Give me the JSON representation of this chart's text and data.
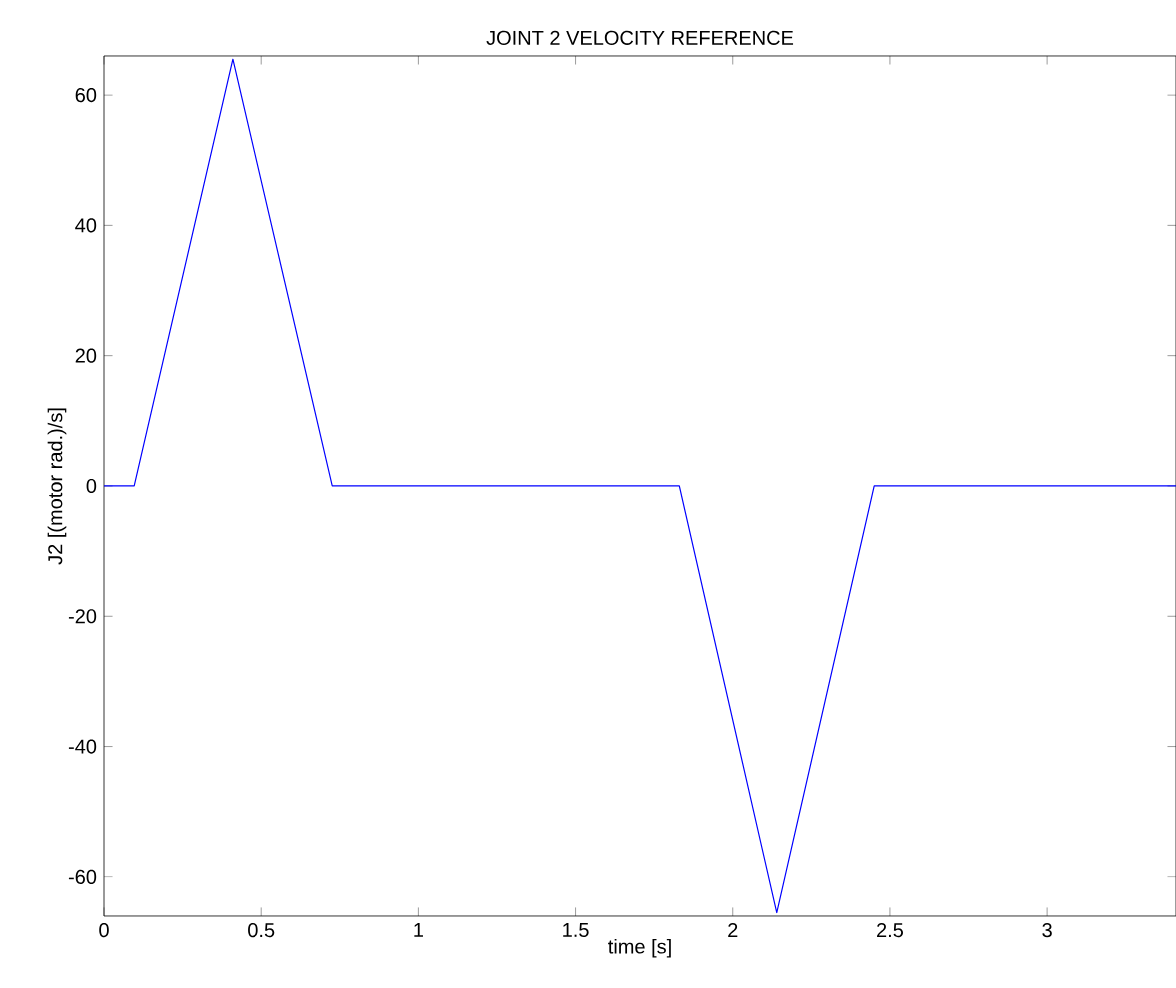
{
  "chart_data": {
    "type": "line",
    "title": "JOINT 2 VELOCITY REFERENCE",
    "xlabel": "time [s]",
    "ylabel": "J2 [(motor rad.)/s]",
    "x": [
      0,
      0.096,
      0.41,
      0.726,
      1.83,
      2.14,
      2.45,
      3.41
    ],
    "series": [
      {
        "color": "#0000ff",
        "values": [
          0,
          0,
          65.5,
          0,
          0,
          -65.5,
          0,
          0
        ]
      }
    ],
    "xlim": [
      0,
      3.41
    ],
    "ylim": [
      -66,
      66
    ],
    "xticks": [
      0,
      0.5,
      1,
      1.5,
      2,
      2.5,
      3
    ],
    "yticks": [
      -60,
      -40,
      -20,
      0,
      20,
      40,
      60
    ],
    "grid": false,
    "marker": "none",
    "line_style": "solid"
  }
}
